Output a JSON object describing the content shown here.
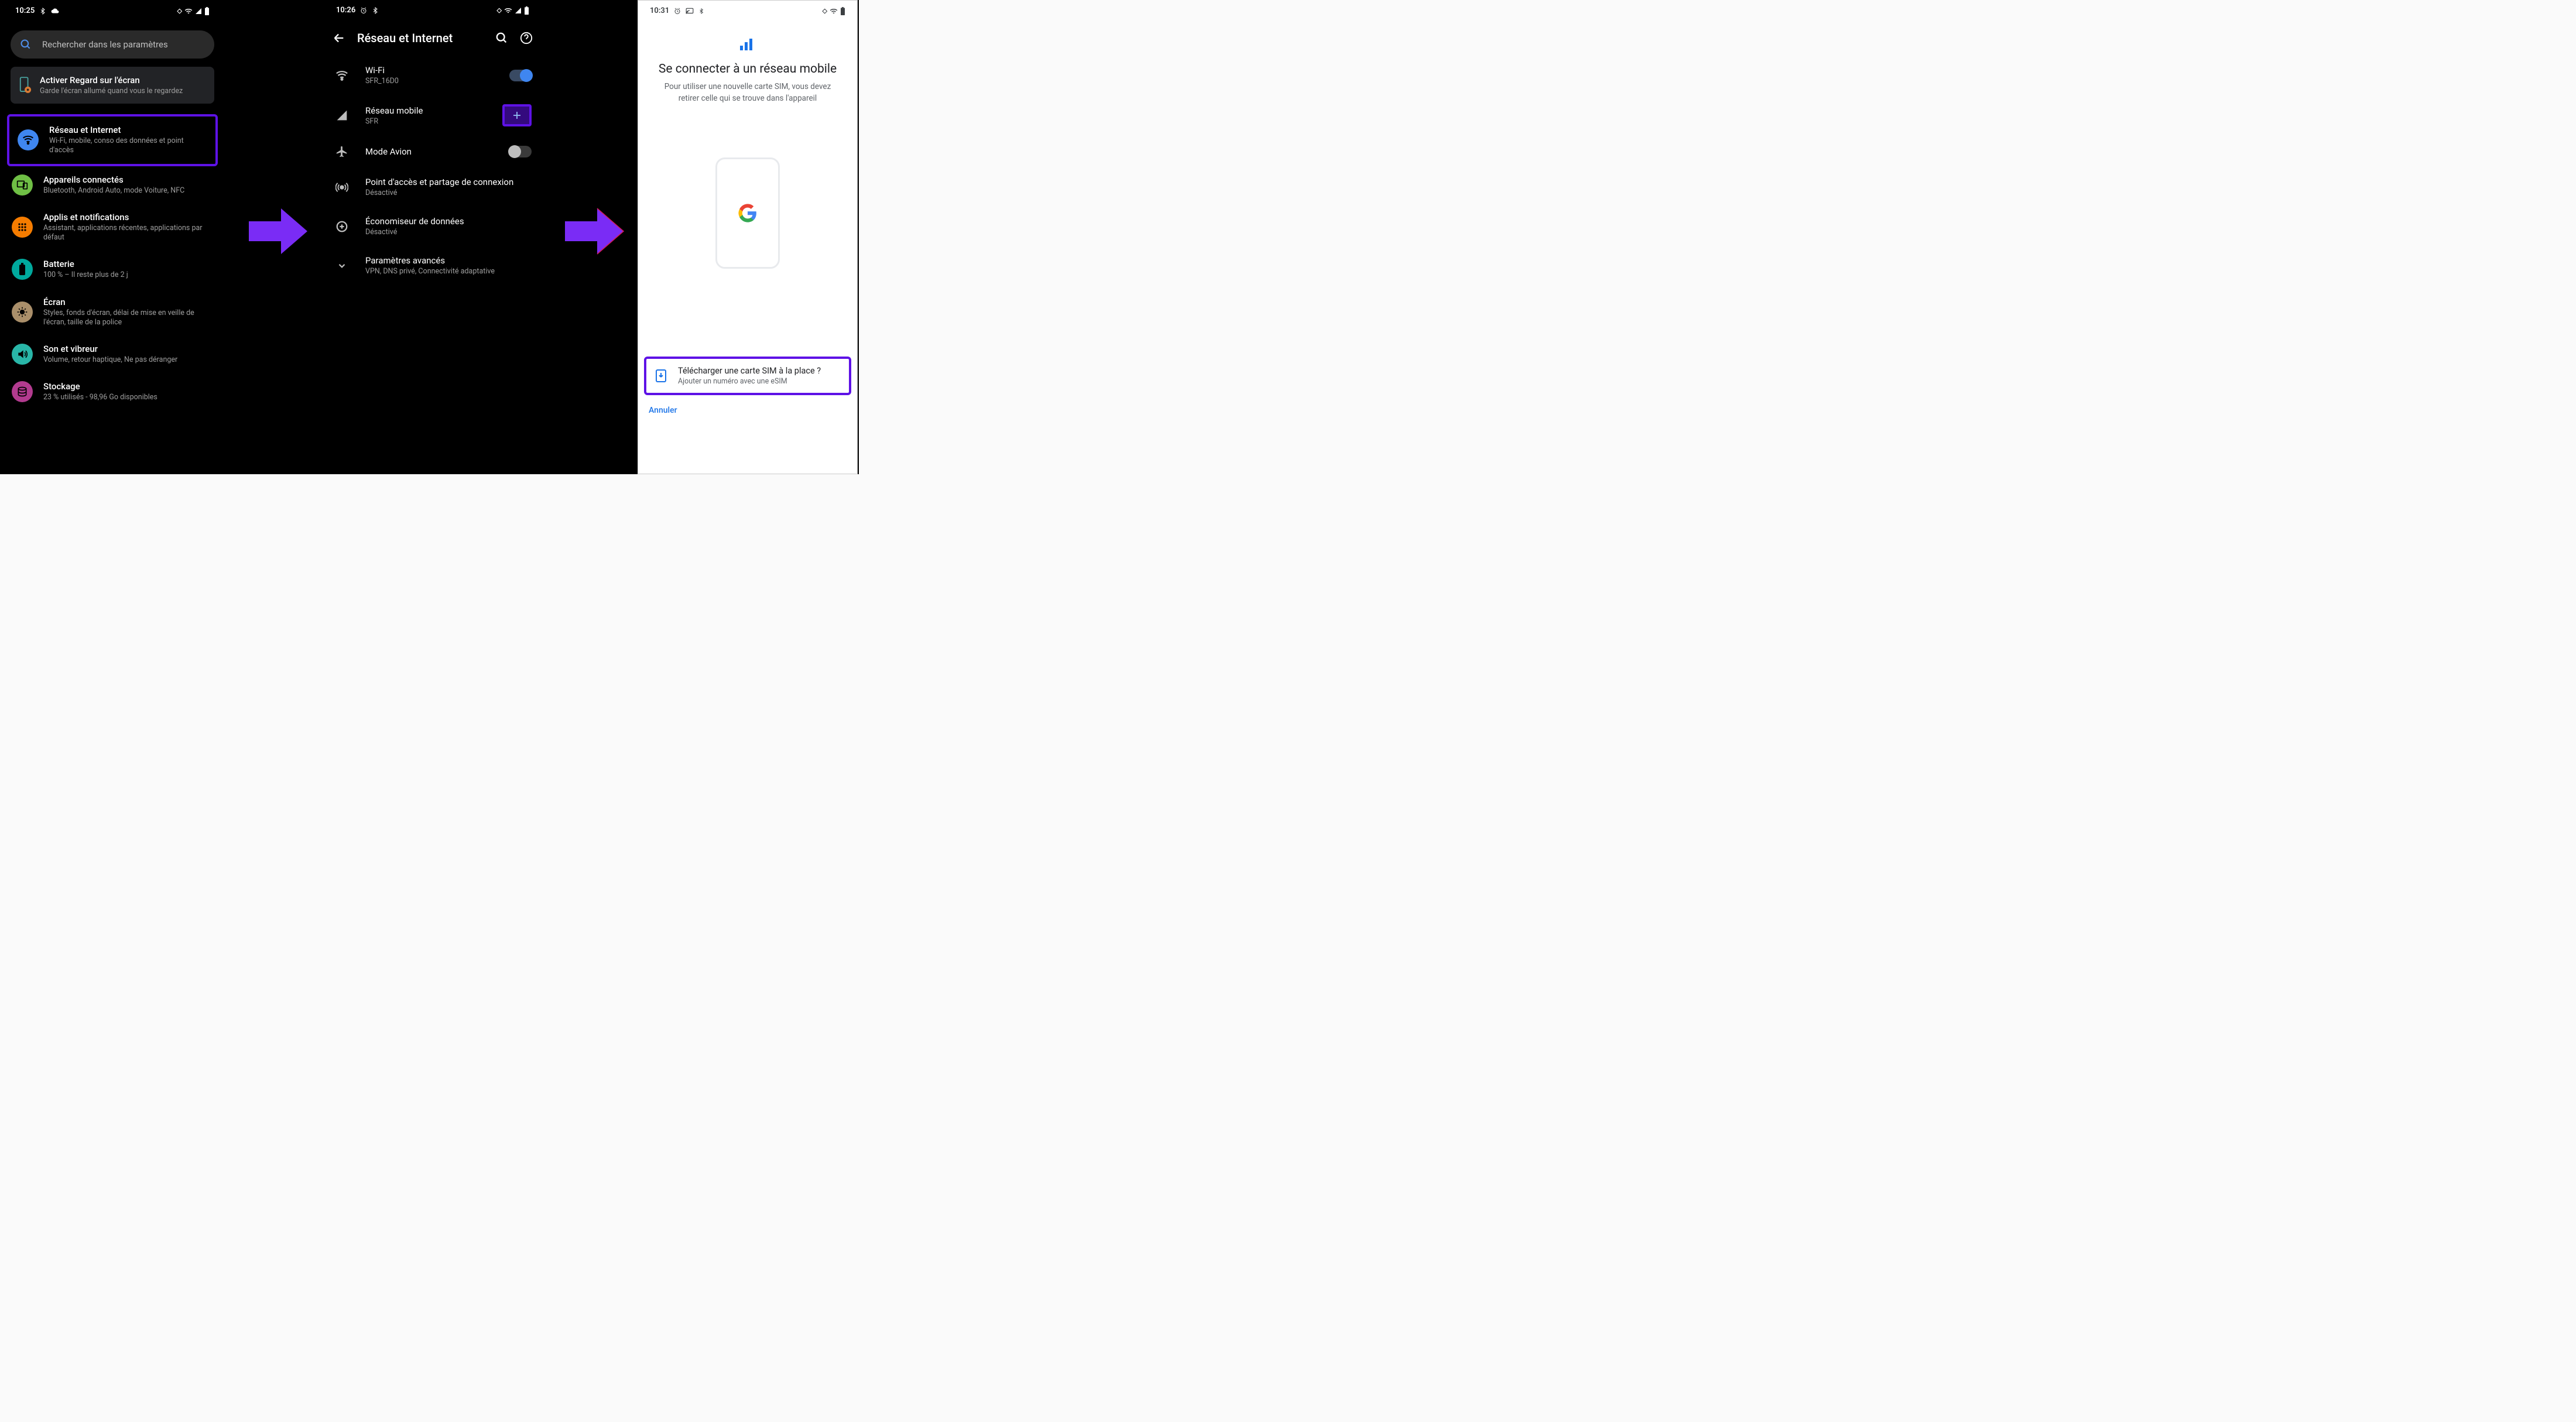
{
  "colors": {
    "highlight_border": "#5e12e6",
    "arrow_fill": "#7a2cf5",
    "dark_bg": "#000000",
    "light_bg": "#ffffff",
    "accent_blue": "#3f86f0",
    "icon_colors": {
      "network": "#3f86f0",
      "devices": "#6fbf45",
      "apps": "#f57c00",
      "battery": "#00a99d",
      "display": "#aa8f6a",
      "sound": "#29b6a8",
      "storage": "#b23b8f"
    }
  },
  "screen1": {
    "status": {
      "time": "10:25",
      "icons_left": [
        "bt",
        "cloud"
      ],
      "icons_right": [
        "dnd",
        "wifi",
        "signal",
        "battery"
      ]
    },
    "search_placeholder": "Rechercher dans les paramètres",
    "tip": {
      "title": "Activer Regard sur l'écran",
      "subtitle": "Garde l'écran allumé quand vous le regardez"
    },
    "items": [
      {
        "key": "network",
        "title": "Réseau et Internet",
        "subtitle": "Wi-Fi, mobile, conso des données et point d'accès",
        "highlighted": true
      },
      {
        "key": "devices",
        "title": "Appareils connectés",
        "subtitle": "Bluetooth, Android Auto, mode Voiture, NFC"
      },
      {
        "key": "apps",
        "title": "Applis et notifications",
        "subtitle": "Assistant, applications récentes, applications par défaut"
      },
      {
        "key": "battery",
        "title": "Batterie",
        "subtitle": "100 % – Il reste plus de 2 j"
      },
      {
        "key": "display",
        "title": "Écran",
        "subtitle": "Styles, fonds d'écran, délai de mise en veille de l'écran, taille de la police"
      },
      {
        "key": "sound",
        "title": "Son et vibreur",
        "subtitle": "Volume, retour haptique, Ne pas déranger"
      },
      {
        "key": "storage",
        "title": "Stockage",
        "subtitle": "23 % utilisés - 98,96 Go disponibles"
      }
    ]
  },
  "screen2": {
    "status": {
      "time": "10:26"
    },
    "header_title": "Réseau et Internet",
    "items": [
      {
        "key": "wifi",
        "title": "Wi-Fi",
        "subtitle": "SFR_16D0",
        "trailing": "toggle-on"
      },
      {
        "key": "mobile",
        "title": "Réseau mobile",
        "subtitle": "SFR",
        "trailing": "plus-highlight"
      },
      {
        "key": "airplane",
        "title": "Mode Avion",
        "subtitle": "",
        "trailing": "toggle-off"
      },
      {
        "key": "hotspot",
        "title": "Point d'accès et partage de connexion",
        "subtitle": "Désactivé"
      },
      {
        "key": "saver",
        "title": "Économiseur de données",
        "subtitle": "Désactivé"
      },
      {
        "key": "advanced",
        "title": "Paramètres avancés",
        "subtitle": "VPN, DNS privé, Connectivité adaptative"
      }
    ]
  },
  "screen3": {
    "status": {
      "time": "10:31"
    },
    "title": "Se connecter à un réseau mobile",
    "subtitle": "Pour utiliser une nouvelle carte SIM, vous devez retirer celle qui se trouve dans l'appareil",
    "esim": {
      "title": "Télécharger une carte SIM à la place ?",
      "subtitle": "Ajouter un numéro avec une eSIM"
    },
    "cancel_label": "Annuler"
  }
}
